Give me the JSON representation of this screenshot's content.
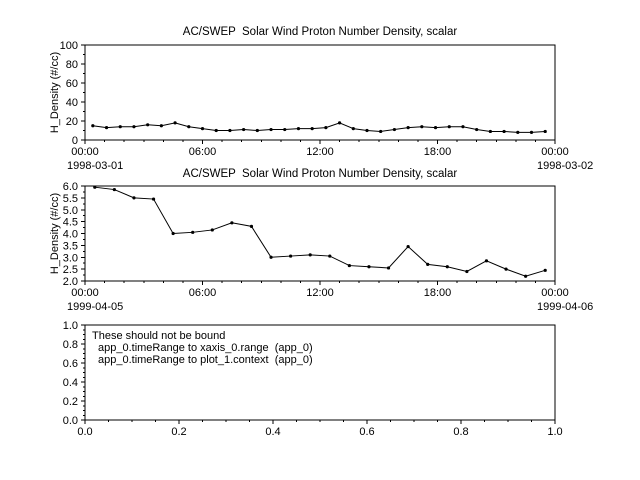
{
  "app": {
    "background": "#ffffff",
    "foreground": "#000000"
  },
  "chart_data": [
    {
      "type": "line",
      "title": "AC/SWEP  Solar Wind Proton Number Density, scalar",
      "ylabel": "H_Density (#/cc)",
      "ylim": [
        0,
        100
      ],
      "yticks": {
        "values": [
          0,
          20,
          40,
          60,
          80,
          100
        ],
        "labels": [
          "0",
          "20",
          "40",
          "60",
          "80",
          "100"
        ],
        "minor_step": 10
      },
      "xlim": [
        0,
        24
      ],
      "xticks": {
        "values": [
          0,
          6,
          12,
          18,
          24
        ],
        "labels": [
          "00:00",
          "06:00",
          "12:00",
          "18:00",
          "00:00"
        ],
        "minor_step": 1
      },
      "x_start_label": "1998-03-01",
      "x_end_label": "1998-03-02",
      "line_color": "#000000",
      "marker": "dot",
      "x": [
        0.4,
        1.1,
        1.8,
        2.5,
        3.2,
        3.9,
        4.6,
        5.3,
        6.0,
        6.7,
        7.4,
        8.1,
        8.8,
        9.5,
        10.2,
        10.9,
        11.6,
        12.3,
        13.0,
        13.7,
        14.4,
        15.1,
        15.8,
        16.5,
        17.2,
        17.9,
        18.6,
        19.3,
        20.0,
        20.7,
        21.4,
        22.1,
        22.8,
        23.5
      ],
      "y": [
        15,
        13,
        14,
        14,
        16,
        15,
        18,
        14,
        12,
        10,
        10,
        11,
        10,
        11,
        11,
        12,
        12,
        13,
        18,
        12,
        10,
        9,
        11,
        13,
        14,
        13,
        14,
        14,
        11,
        9,
        9,
        8,
        8,
        9
      ]
    },
    {
      "type": "line",
      "title": "AC/SWEP  Solar Wind Proton Number Density, scalar",
      "ylabel": "H_Density (#/cc)",
      "ylim": [
        2.0,
        6.0
      ],
      "yticks": {
        "values": [
          2.0,
          2.5,
          3.0,
          3.5,
          4.0,
          4.5,
          5.0,
          5.5,
          6.0
        ],
        "labels": [
          "2.0",
          "2.5",
          "3.0",
          "3.5",
          "4.0",
          "4.5",
          "5.0",
          "5.5",
          "6.0"
        ],
        "minor_step": 0.25
      },
      "xlim": [
        0,
        24
      ],
      "xticks": {
        "values": [
          0,
          6,
          12,
          18,
          24
        ],
        "labels": [
          "00:00",
          "06:00",
          "12:00",
          "18:00",
          "00:00"
        ],
        "minor_step": 1
      },
      "x_start_label": "1999-04-05",
      "x_end_label": "1999-04-06",
      "line_color": "#000000",
      "marker": "dot",
      "x": [
        0.5,
        1.5,
        2.5,
        3.5,
        4.5,
        5.5,
        6.5,
        7.5,
        8.5,
        9.5,
        10.5,
        11.5,
        12.5,
        13.5,
        14.5,
        15.5,
        16.5,
        17.5,
        18.5,
        19.5,
        20.5,
        21.5,
        22.5,
        23.5
      ],
      "y": [
        5.95,
        5.85,
        5.5,
        5.45,
        4.0,
        4.05,
        4.15,
        4.45,
        4.3,
        3.0,
        3.05,
        3.1,
        3.05,
        2.65,
        2.6,
        2.55,
        3.45,
        2.7,
        2.6,
        2.4,
        2.85,
        2.5,
        2.2,
        2.45
      ]
    },
    {
      "type": "empty",
      "title": "",
      "ylabel": "",
      "ylim": [
        0.0,
        1.0
      ],
      "yticks": {
        "values": [
          0.0,
          0.2,
          0.4,
          0.6,
          0.8,
          1.0
        ],
        "labels": [
          "0.0",
          "0.2",
          "0.4",
          "0.6",
          "0.8",
          "1.0"
        ],
        "minor_step": 0.05
      },
      "xlim": [
        0.0,
        1.0
      ],
      "xticks": {
        "values": [
          0.0,
          0.2,
          0.4,
          0.6,
          0.8,
          1.0
        ],
        "labels": [
          "0.0",
          "0.2",
          "0.4",
          "0.6",
          "0.8",
          "1.0"
        ],
        "minor_step": 0.05
      },
      "x_start_label": "",
      "x_end_label": "",
      "annotations": [
        "These should not be bound",
        "app_0.timeRange to xaxis_0.range  (app_0)",
        "app_0.timeRange to plot_1.context  (app_0)"
      ]
    }
  ]
}
